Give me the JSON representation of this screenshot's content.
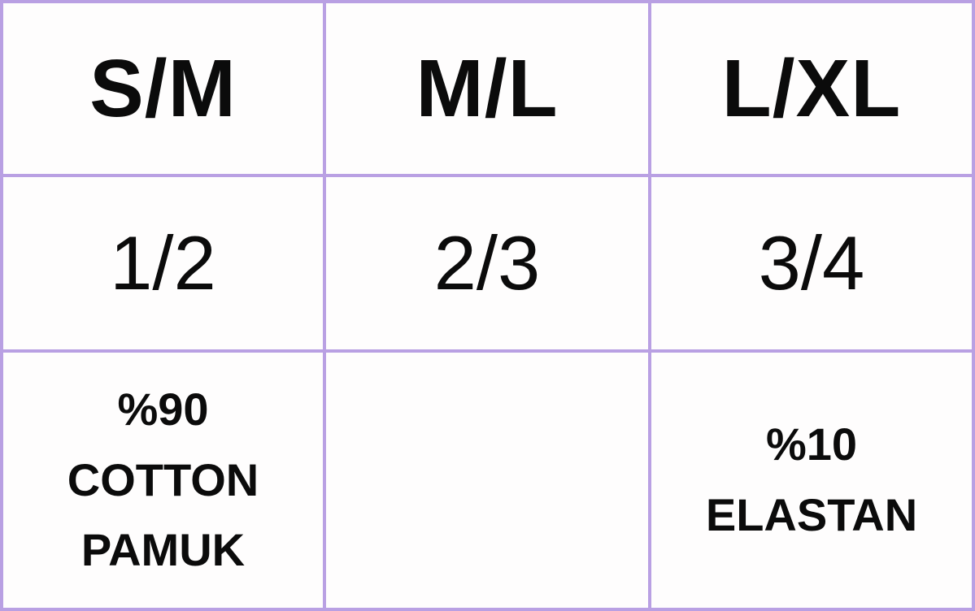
{
  "table": {
    "headers": [
      "S/M",
      "M/L",
      "L/XL"
    ],
    "ratios": [
      "1/2",
      "2/3",
      "3/4"
    ],
    "composition_left": {
      "line1": "%90",
      "line2": "COTTON",
      "line3": "PAMUK"
    },
    "composition_middle": "",
    "composition_right": {
      "line1": "%10",
      "line2": "ELASTAN"
    },
    "colors": {
      "grid_border": "#b9a0e3",
      "cell_background": "#fefdfd",
      "text": "#0b0b0b"
    }
  },
  "chart_data": {
    "type": "table",
    "columns": [
      "S/M",
      "M/L",
      "L/XL"
    ],
    "rows": [
      [
        "1/2",
        "2/3",
        "3/4"
      ],
      [
        "%90 COTTON PAMUK",
        "",
        "%10 ELASTAN"
      ]
    ],
    "layout_hints": {
      "header_row_bold": true,
      "grid_on": true,
      "border_color": "#b9a0e3"
    }
  }
}
